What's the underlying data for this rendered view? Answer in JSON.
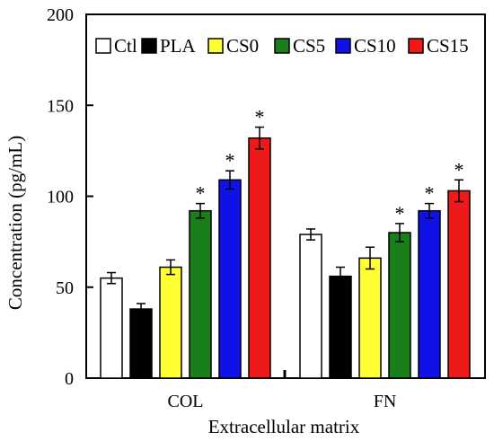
{
  "chart_data": {
    "type": "bar",
    "xlabel": "Extracellular matrix",
    "ylabel": "Concentration (pg/mL)",
    "ylim": [
      0,
      200
    ],
    "yticks": [
      0,
      50,
      100,
      150,
      200
    ],
    "categories": [
      "COL",
      "FN"
    ],
    "legend_position": "top",
    "series": [
      {
        "name": "Ctl",
        "color": "#ffffff",
        "values": [
          55,
          79
        ],
        "errors": [
          3,
          3
        ],
        "significant": [
          false,
          false
        ]
      },
      {
        "name": "PLA",
        "color": "#000000",
        "values": [
          38,
          56
        ],
        "errors": [
          3,
          5
        ],
        "significant": [
          false,
          false
        ]
      },
      {
        "name": "CS0",
        "color": "#ffff33",
        "values": [
          61,
          66
        ],
        "errors": [
          4,
          6
        ],
        "significant": [
          false,
          false
        ]
      },
      {
        "name": "CS5",
        "color": "#1a7f1a",
        "values": [
          92,
          80
        ],
        "errors": [
          4,
          5
        ],
        "significant": [
          true,
          true
        ]
      },
      {
        "name": "CS10",
        "color": "#1010e8",
        "values": [
          109,
          92
        ],
        "errors": [
          5,
          4
        ],
        "significant": [
          true,
          true
        ]
      },
      {
        "name": "CS15",
        "color": "#ee1a1a",
        "values": [
          132,
          103
        ],
        "errors": [
          6,
          6
        ],
        "significant": [
          true,
          true
        ]
      }
    ],
    "significance_marker": "*"
  }
}
